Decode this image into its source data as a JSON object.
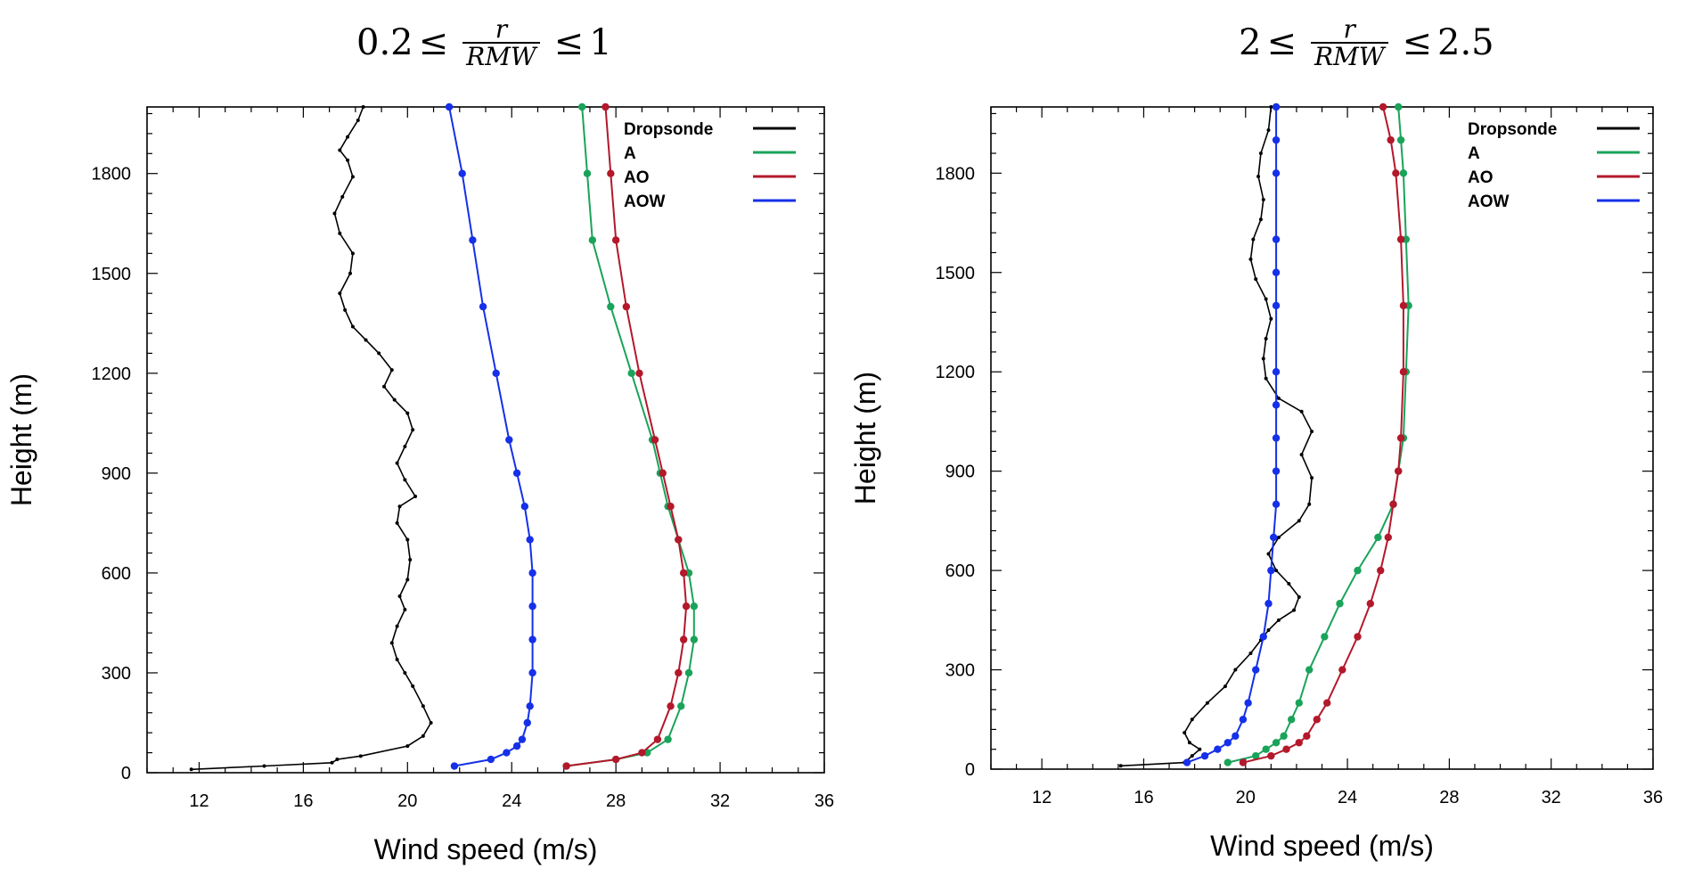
{
  "panels": [
    {
      "title": {
        "lhs": "0.2",
        "rel": "≤",
        "frac_num": "r",
        "frac_den": "RMW",
        "rel2": "≤",
        "rhs": "1"
      },
      "legend": [
        "Dropsonde",
        "A",
        "AO",
        "AOW"
      ]
    },
    {
      "title": {
        "lhs": "2",
        "rel": "≤",
        "frac_num": "r",
        "frac_den": "RMW",
        "rel2": "≤",
        "rhs": "2.5"
      },
      "legend": [
        "Dropsonde",
        "A",
        "AO",
        "AOW"
      ]
    }
  ],
  "colors": {
    "Dropsonde": "#000000",
    "A": "#1aa35a",
    "AO": "#b3182b",
    "AOW": "#1530e8"
  },
  "chart_data": [
    {
      "type": "line",
      "xlabel": "Wind speed (m/s)",
      "ylabel": "Height (m)",
      "xlim": [
        10,
        36
      ],
      "ylim": [
        0,
        2000
      ],
      "xticks": [
        12,
        16,
        20,
        24,
        28,
        32,
        36
      ],
      "yticks": [
        0,
        300,
        600,
        900,
        1200,
        1500,
        1800
      ],
      "legend_position": "top-right",
      "series": [
        {
          "name": "Dropsonde",
          "marker": "small-dot",
          "x": [
            11.7,
            14.5,
            17.1,
            17.3,
            18.2,
            20.0,
            20.6,
            20.9,
            20.6,
            20.2,
            19.9,
            19.6,
            19.4,
            19.6,
            19.9,
            19.7,
            20.0,
            20.1,
            20.0,
            19.6,
            19.7,
            20.3,
            19.9,
            19.6,
            19.9,
            20.2,
            20.0,
            19.5,
            19.1,
            19.4,
            18.9,
            18.4,
            17.9,
            17.6,
            17.4,
            17.8,
            17.9,
            17.4,
            17.2,
            17.5,
            17.9,
            17.7,
            17.4,
            17.7,
            18.1,
            18.3
          ],
          "y": [
            10,
            20,
            30,
            40,
            50,
            80,
            110,
            150,
            200,
            260,
            300,
            340,
            390,
            440,
            490,
            530,
            580,
            640,
            700,
            750,
            800,
            830,
            880,
            930,
            980,
            1030,
            1080,
            1120,
            1160,
            1210,
            1260,
            1300,
            1340,
            1390,
            1440,
            1500,
            1560,
            1620,
            1680,
            1730,
            1790,
            1840,
            1870,
            1910,
            1960,
            2000
          ]
        },
        {
          "name": "A",
          "marker": "dot",
          "x": [
            26.1,
            28.0,
            29.2,
            30.0,
            30.5,
            30.8,
            31.0,
            31.0,
            30.8,
            30.4,
            30.0,
            29.7,
            29.4,
            28.6,
            27.8,
            27.1,
            26.9,
            26.7
          ],
          "y": [
            20,
            40,
            60,
            100,
            200,
            300,
            400,
            500,
            600,
            700,
            800,
            900,
            1000,
            1200,
            1400,
            1600,
            1800,
            2000
          ]
        },
        {
          "name": "AO",
          "marker": "dot",
          "x": [
            26.1,
            28.0,
            29.0,
            29.6,
            30.1,
            30.4,
            30.6,
            30.7,
            30.6,
            30.4,
            30.1,
            29.8,
            29.5,
            28.9,
            28.4,
            28.0,
            27.8,
            27.6
          ],
          "y": [
            20,
            40,
            60,
            100,
            200,
            300,
            400,
            500,
            600,
            700,
            800,
            900,
            1000,
            1200,
            1400,
            1600,
            1800,
            2000
          ]
        },
        {
          "name": "AOW",
          "marker": "dot",
          "x": [
            21.8,
            23.2,
            23.8,
            24.2,
            24.4,
            24.6,
            24.7,
            24.8,
            24.8,
            24.8,
            24.8,
            24.7,
            24.5,
            24.2,
            23.9,
            23.4,
            22.9,
            22.5,
            22.1,
            21.6
          ],
          "y": [
            20,
            40,
            60,
            80,
            100,
            150,
            200,
            300,
            400,
            500,
            600,
            700,
            800,
            900,
            1000,
            1200,
            1400,
            1600,
            1800,
            2000
          ]
        }
      ]
    },
    {
      "type": "line",
      "xlabel": "Wind speed (m/s)",
      "ylabel": "Height (m)",
      "xlim": [
        10,
        36
      ],
      "ylim": [
        0,
        2000
      ],
      "xticks": [
        12,
        16,
        20,
        24,
        28,
        32,
        36
      ],
      "yticks": [
        0,
        300,
        600,
        900,
        1200,
        1500,
        1800
      ],
      "legend_position": "top-right",
      "series": [
        {
          "name": "Dropsonde",
          "marker": "small-dot",
          "x": [
            15.1,
            17.6,
            17.9,
            18.2,
            17.8,
            17.6,
            17.9,
            18.5,
            19.2,
            19.6,
            20.2,
            20.6,
            20.9,
            21.3,
            21.9,
            22.1,
            21.7,
            21.2,
            20.9,
            21.3,
            22.1,
            22.5,
            22.6,
            22.2,
            22.6,
            22.2,
            21.3,
            20.8,
            20.7,
            20.8,
            21.0,
            20.8,
            20.4,
            20.2,
            20.3,
            20.6,
            20.7,
            20.5,
            20.6,
            20.9,
            21.0
          ],
          "y": [
            10,
            20,
            40,
            60,
            80,
            110,
            150,
            200,
            250,
            300,
            350,
            390,
            420,
            450,
            480,
            520,
            560,
            600,
            650,
            700,
            750,
            800,
            880,
            950,
            1020,
            1080,
            1120,
            1180,
            1240,
            1300,
            1360,
            1420,
            1480,
            1540,
            1600,
            1660,
            1720,
            1790,
            1860,
            1930,
            2000
          ]
        },
        {
          "name": "A",
          "marker": "dot",
          "x": [
            19.3,
            20.4,
            20.8,
            21.2,
            21.5,
            21.8,
            22.1,
            22.5,
            23.1,
            23.7,
            24.4,
            25.2,
            25.8,
            26.0,
            26.2,
            26.3,
            26.4,
            26.3,
            26.2,
            26.1,
            26.0
          ],
          "y": [
            20,
            40,
            60,
            80,
            100,
            150,
            200,
            300,
            400,
            500,
            600,
            700,
            800,
            900,
            1000,
            1200,
            1400,
            1600,
            1800,
            1900,
            2000
          ]
        },
        {
          "name": "AO",
          "marker": "dot",
          "x": [
            19.9,
            21.0,
            21.6,
            22.1,
            22.4,
            22.8,
            23.2,
            23.8,
            24.4,
            24.9,
            25.3,
            25.6,
            25.8,
            26.0,
            26.1,
            26.2,
            26.2,
            26.1,
            25.9,
            25.7,
            25.4
          ],
          "y": [
            20,
            40,
            60,
            80,
            100,
            150,
            200,
            300,
            400,
            500,
            600,
            700,
            800,
            900,
            1000,
            1200,
            1400,
            1600,
            1800,
            1900,
            2000
          ]
        },
        {
          "name": "AOW",
          "marker": "dot",
          "x": [
            17.7,
            18.4,
            18.9,
            19.3,
            19.6,
            19.9,
            20.1,
            20.4,
            20.7,
            20.9,
            21.0,
            21.1,
            21.2,
            21.2,
            21.2,
            21.2,
            21.2,
            21.2,
            21.2,
            21.2,
            21.2,
            21.2,
            21.2
          ],
          "y": [
            20,
            40,
            60,
            80,
            100,
            150,
            200,
            300,
            400,
            500,
            600,
            700,
            800,
            900,
            1000,
            1100,
            1200,
            1400,
            1500,
            1600,
            1800,
            1900,
            2000
          ]
        }
      ]
    }
  ]
}
